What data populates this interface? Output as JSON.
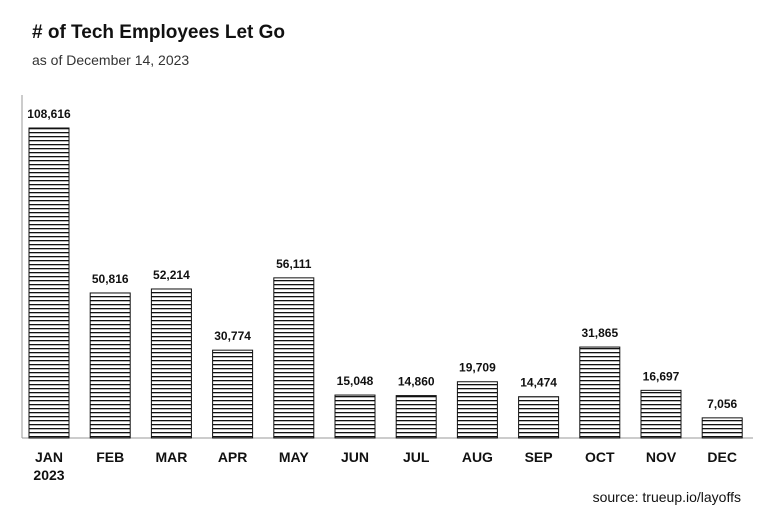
{
  "chart_data": {
    "type": "bar",
    "title": "# of Tech Employees Let Go",
    "subtitle": "as of December 14, 2023",
    "source": "source: trueup.io/layoffs",
    "categories": [
      "JAN",
      "FEB",
      "MAR",
      "APR",
      "MAY",
      "JUN",
      "JUL",
      "AUG",
      "SEP",
      "OCT",
      "NOV",
      "DEC"
    ],
    "year_label": "2023",
    "values": [
      108616,
      50816,
      52214,
      30774,
      56111,
      15048,
      14860,
      19709,
      14474,
      31865,
      16697,
      7056
    ],
    "value_labels": [
      "108,616",
      "50,816",
      "52,214",
      "30,774",
      "56,111",
      "15,048",
      "14,860",
      "19,709",
      "14,474",
      "31,865",
      "16,697",
      "7,056"
    ],
    "xlabel": "",
    "ylabel": "",
    "ylim": [
      0,
      110000
    ],
    "grid": false,
    "legend": "none"
  }
}
